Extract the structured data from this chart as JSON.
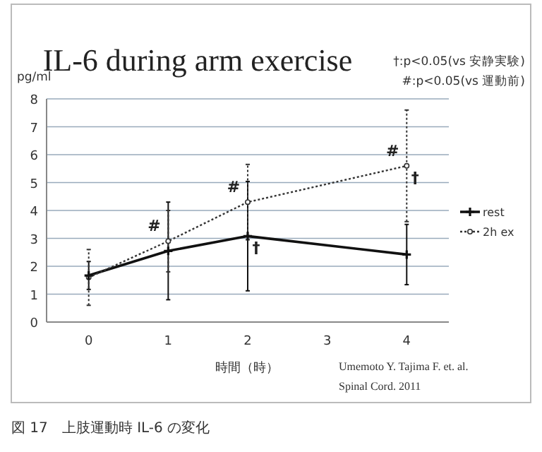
{
  "chart_data": {
    "type": "line",
    "title": "IL-6 during arm exercise",
    "ylabel": "pg/ml",
    "xlabel": "時間（時）",
    "x": [
      0,
      1,
      2,
      4
    ],
    "xlim": [
      -0.53,
      4.53
    ],
    "ylim": [
      0,
      8
    ],
    "xticks": [
      0,
      1,
      2,
      3,
      4
    ],
    "yticks": [
      0,
      1,
      2,
      3,
      4,
      5,
      6,
      7,
      8
    ],
    "grid": "y",
    "legend": "right",
    "series": [
      {
        "name": "rest",
        "color": "#111111",
        "line_style": "solid",
        "marker": "cross",
        "values": [
          1.67,
          2.55,
          3.08,
          2.42
        ],
        "errors": [
          0.5,
          1.75,
          1.96,
          1.08
        ]
      },
      {
        "name": "2h ex",
        "color": "#333333",
        "line_style": "dotted",
        "marker": "circle",
        "values": [
          1.6,
          2.9,
          4.3,
          5.6
        ],
        "errors": [
          1.0,
          1.1,
          1.35,
          2.0
        ]
      }
    ],
    "annotations": [
      "†:p<0.05(vs 安静実験)",
      "#:p<0.05(vs 運動前)",
      "Umemoto Y. Tajima F. et. al.",
      "Spinal Cord. 2011",
      "図 17　上肢運動時 IL-6 の変化",
      {
        "text": "#",
        "x": 1,
        "y": 2.9
      },
      {
        "text": "#",
        "x": 2,
        "y": 4.3
      },
      {
        "text": "†",
        "x": 2,
        "y": 3.08
      },
      {
        "text": "#",
        "x": 4,
        "y": 5.6
      },
      {
        "text": "†",
        "x": 4,
        "y": 5.6
      }
    ]
  }
}
